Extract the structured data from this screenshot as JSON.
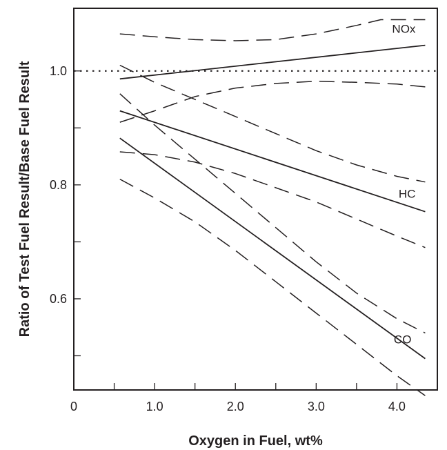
{
  "chart_data": {
    "type": "line",
    "title": "",
    "xlabel": "Oxygen in Fuel, wt%",
    "ylabel": "Ratio of Test Fuel Result/Base Fuel Result",
    "xlim": [
      0,
      4.5
    ],
    "ylim": [
      0.44,
      1.11
    ],
    "xticks": [
      0.5,
      1.0,
      1.5,
      2.0,
      2.5,
      3.0,
      3.5,
      4.0
    ],
    "xtick_labels": [
      "0",
      "1.0",
      "2.0",
      "3.0",
      "4.0"
    ],
    "xtick_label_values": [
      0,
      1.0,
      2.0,
      3.0,
      4.0
    ],
    "yticks": [
      0.5,
      0.6,
      0.7,
      0.8,
      0.9,
      1.0
    ],
    "ytick_labels": [
      "0.6",
      "0.8",
      "1.0"
    ],
    "ytick_label_values": [
      0.6,
      0.8,
      1.0
    ],
    "reference_line": {
      "y": 1.0,
      "style": "dotted"
    },
    "grid": false,
    "legend": "none",
    "colors": {
      "line": "#231f20",
      "background": "#ffffff"
    },
    "series": [
      {
        "name": "NOx",
        "style": "solid",
        "x": [
          0.57,
          4.35
        ],
        "y": [
          0.986,
          1.045
        ]
      },
      {
        "style": "dashed",
        "x": [
          0.57,
          1.0,
          1.5,
          2.0,
          2.5,
          3.0,
          3.5,
          3.8,
          4.35
        ],
        "y": [
          1.065,
          1.06,
          1.055,
          1.053,
          1.055,
          1.065,
          1.08,
          1.09,
          1.09
        ]
      },
      {
        "style": "dashed",
        "x": [
          0.57,
          1.0,
          1.5,
          2.0,
          2.5,
          3.0,
          3.5,
          4.0,
          4.35
        ],
        "y": [
          0.91,
          0.93,
          0.955,
          0.97,
          0.978,
          0.982,
          0.98,
          0.977,
          0.972
        ]
      },
      {
        "name": "HC",
        "style": "solid",
        "x": [
          0.57,
          4.35
        ],
        "y": [
          0.93,
          0.753
        ]
      },
      {
        "style": "dashed",
        "x": [
          0.57,
          1.0,
          1.5,
          2.0,
          2.5,
          3.0,
          3.5,
          4.0,
          4.35
        ],
        "y": [
          1.01,
          0.98,
          0.95,
          0.92,
          0.89,
          0.86,
          0.835,
          0.815,
          0.805
        ]
      },
      {
        "style": "dashed",
        "x": [
          0.57,
          1.0,
          1.5,
          2.0,
          2.5,
          3.0,
          3.5,
          4.0,
          4.35
        ],
        "y": [
          0.858,
          0.853,
          0.84,
          0.82,
          0.795,
          0.77,
          0.74,
          0.71,
          0.69
        ]
      },
      {
        "name": "CO",
        "style": "solid",
        "x": [
          0.57,
          4.35
        ],
        "y": [
          0.882,
          0.495
        ]
      },
      {
        "style": "dashed",
        "x": [
          0.57,
          1.0,
          1.5,
          2.0,
          2.5,
          3.0,
          3.5,
          4.0,
          4.35
        ],
        "y": [
          0.96,
          0.905,
          0.845,
          0.785,
          0.725,
          0.665,
          0.61,
          0.565,
          0.54
        ]
      },
      {
        "style": "dashed",
        "x": [
          0.57,
          1.0,
          1.5,
          2.0,
          2.5,
          3.0,
          3.5,
          4.0,
          4.35
        ],
        "y": [
          0.81,
          0.777,
          0.735,
          0.685,
          0.63,
          0.575,
          0.52,
          0.465,
          0.43
        ]
      }
    ]
  }
}
